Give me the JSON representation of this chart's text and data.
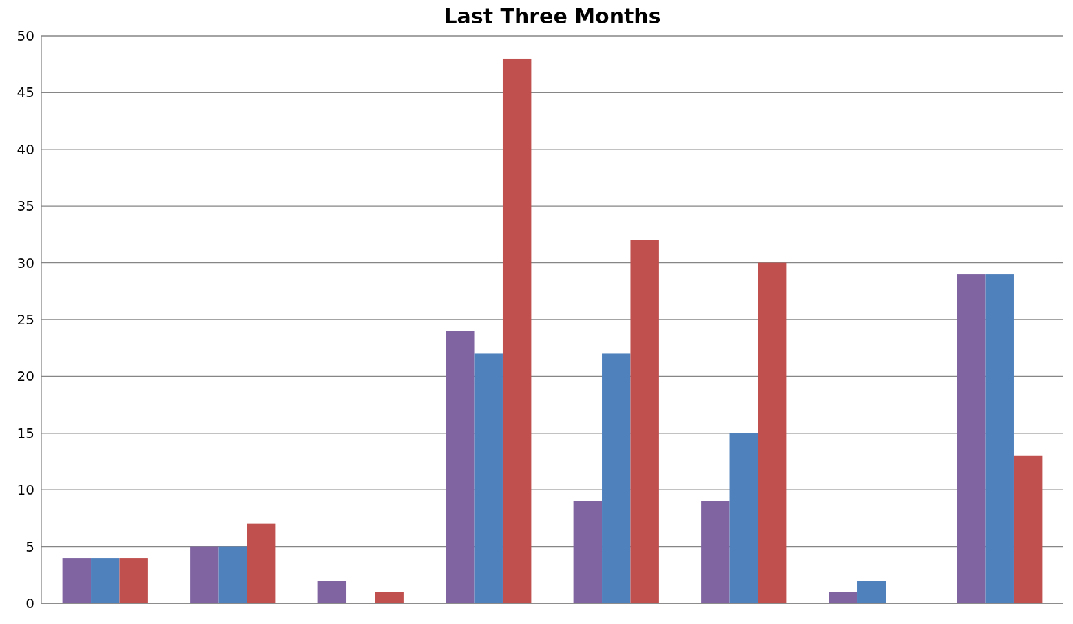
{
  "chart_data": {
    "type": "bar",
    "title": "Last Three Months",
    "categories": [
      null,
      null,
      null,
      null,
      null,
      null,
      null,
      null
    ],
    "series": [
      {
        "color": "#8064a2",
        "values": [
          4,
          5,
          2,
          24,
          9,
          9,
          1,
          29
        ]
      },
      {
        "color": "#4f81bd",
        "values": [
          4,
          5,
          0,
          22,
          22,
          15,
          2,
          29
        ]
      },
      {
        "color": "#c0504d",
        "values": [
          4,
          7,
          1,
          48,
          32,
          30,
          0,
          13
        ]
      }
    ],
    "ylim": [
      0,
      50
    ],
    "yticks": [
      0,
      5,
      10,
      15,
      20,
      25,
      30,
      35,
      40,
      45,
      50
    ],
    "grid": "y"
  }
}
